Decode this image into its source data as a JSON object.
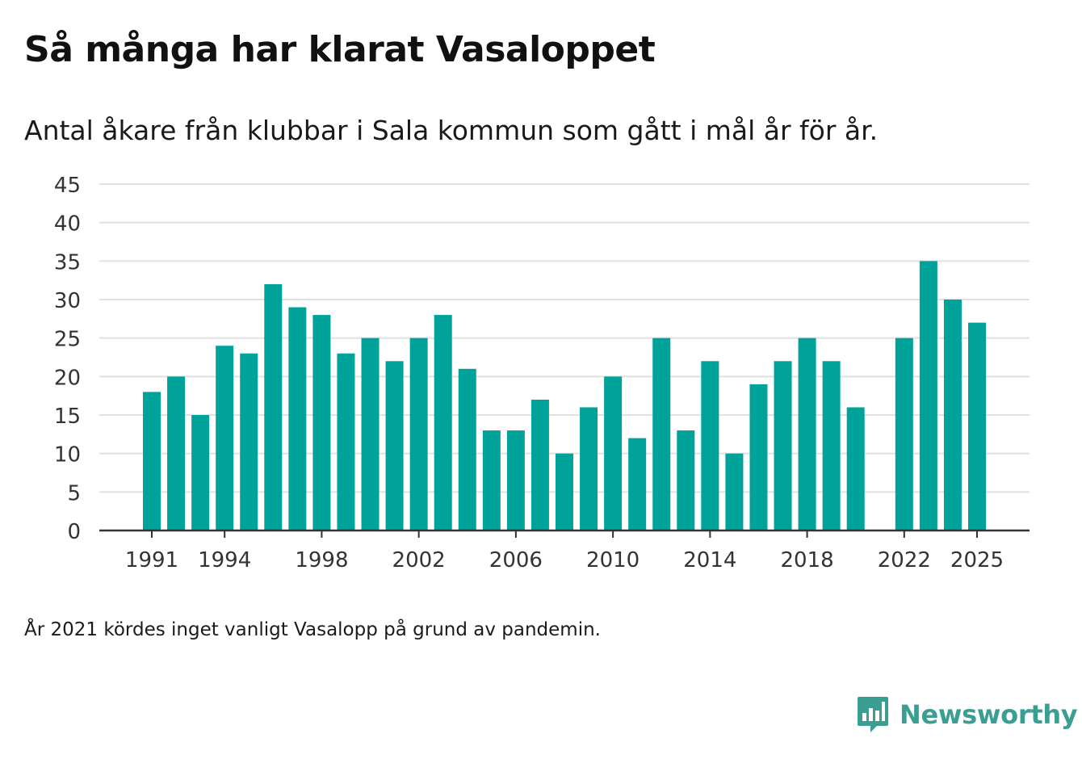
{
  "title": "Så många har klarat Vasaloppet",
  "subtitle": "Antal åkare från klubbar i Sala kommun som gått i mål år för år.",
  "note": "År 2021 kördes inget vanligt Vasalopp på grund av pandemin.",
  "brand": {
    "name": "Newsworthy",
    "icon": "newsworthy-logo-icon",
    "color": "#3a9e92"
  },
  "colors": {
    "bar": "#00a39a",
    "grid": "#e1e1e1",
    "axis": "#333333",
    "text": "#333333"
  },
  "chart_data": {
    "type": "bar",
    "title": "Så många har klarat Vasaloppet",
    "xlabel": "",
    "ylabel": "",
    "ylim": [
      0,
      45
    ],
    "yticks": [
      0,
      5,
      10,
      15,
      20,
      25,
      30,
      35,
      40,
      45
    ],
    "xticks": [
      1991,
      1994,
      1998,
      2002,
      2006,
      2010,
      2014,
      2018,
      2022,
      2025
    ],
    "xlim": [
      1989,
      2026
    ],
    "grid": true,
    "categories": [
      1991,
      1992,
      1993,
      1994,
      1995,
      1996,
      1997,
      1998,
      1999,
      2000,
      2001,
      2002,
      2003,
      2004,
      2005,
      2006,
      2007,
      2008,
      2009,
      2010,
      2011,
      2012,
      2013,
      2014,
      2015,
      2016,
      2017,
      2018,
      2019,
      2020,
      2022,
      2023,
      2024,
      2025
    ],
    "values": [
      18,
      20,
      15,
      24,
      23,
      32,
      29,
      28,
      23,
      25,
      22,
      25,
      28,
      21,
      13,
      13,
      17,
      10,
      16,
      20,
      12,
      25,
      13,
      22,
      10,
      19,
      22,
      25,
      22,
      16,
      25,
      35,
      30,
      27
    ]
  }
}
